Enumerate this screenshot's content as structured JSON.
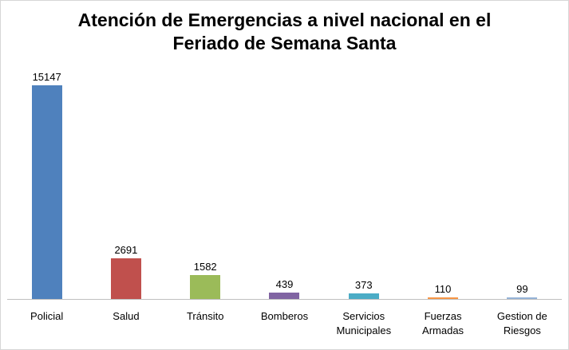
{
  "chart": {
    "title": "Atención de Emergencias a nivel nacional en el Feriado de Semana Santa"
  },
  "chart_data": {
    "type": "bar",
    "title": "Atención de Emergencias a nivel nacional en el Feriado de Semana Santa",
    "categories": [
      "Policial",
      "Salud",
      "Tránsito",
      "Bomberos",
      "Servicios Municipales",
      "Fuerzas Armadas",
      "Gestion de Riesgos"
    ],
    "values": [
      15147,
      2691,
      1582,
      439,
      373,
      110,
      99
    ],
    "bar_colors": [
      "#4F81BD",
      "#C0504D",
      "#9BBB59",
      "#8064A2",
      "#4BACC6",
      "#F79646",
      "#95B3D7"
    ],
    "xlabel": "",
    "ylabel": "",
    "ylim": [
      0,
      15147
    ],
    "grid": false,
    "legend_position": "none",
    "data_labels": true
  }
}
